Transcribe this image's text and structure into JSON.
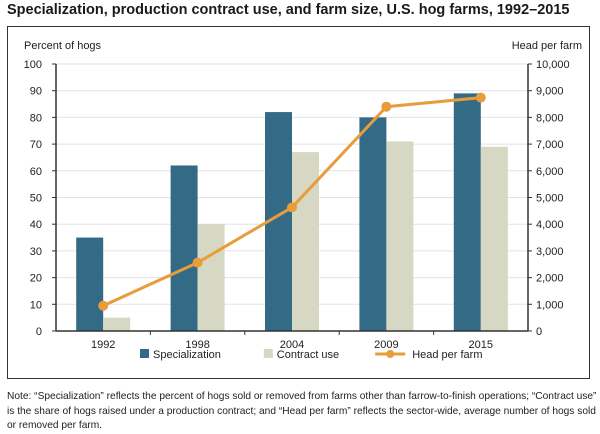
{
  "title": "Specialization, production contract use, and farm size, U.S. hog farms, 1992–2015",
  "note": "Note: “Specialization” reflects the percent of hogs sold or removed from farms other than farrow-to-finish operations; “Contract use” is the share of hogs raised under a production contract; and “Head per farm” reflects the sector-wide, average number of hogs sold or removed per farm.",
  "chart_data": {
    "type": "bar",
    "title": "Specialization, production contract use, and farm size, U.S. hog farms, 1992–2015",
    "categories": [
      "1992",
      "1998",
      "2004",
      "2009",
      "2015"
    ],
    "ylabel": "Percent of hogs",
    "y2label": "Head per farm",
    "ylim": [
      0,
      100
    ],
    "y2lim": [
      0,
      10000
    ],
    "yticks": [
      "0",
      "10",
      "20",
      "30",
      "40",
      "50",
      "60",
      "70",
      "80",
      "90",
      "100"
    ],
    "y2ticks": [
      "0",
      "1,000",
      "2,000",
      "3,000",
      "4,000",
      "5,000",
      "6,000",
      "7,000",
      "8,000",
      "9,000",
      "10,000"
    ],
    "grid": true,
    "legend": "bottom",
    "series": [
      {
        "name": "Specialization",
        "type": "bar",
        "axis": "left",
        "color": "#336b87",
        "values": [
          35,
          62,
          82,
          80,
          89
        ]
      },
      {
        "name": "Contract use",
        "type": "bar",
        "axis": "left",
        "color": "#d6d8c3",
        "values": [
          5,
          40,
          67,
          71,
          69
        ]
      },
      {
        "name": "Head per farm",
        "type": "line",
        "axis": "right",
        "color": "#e89c3a",
        "values": [
          945,
          2560,
          4630,
          8400,
          8740
        ]
      }
    ]
  }
}
